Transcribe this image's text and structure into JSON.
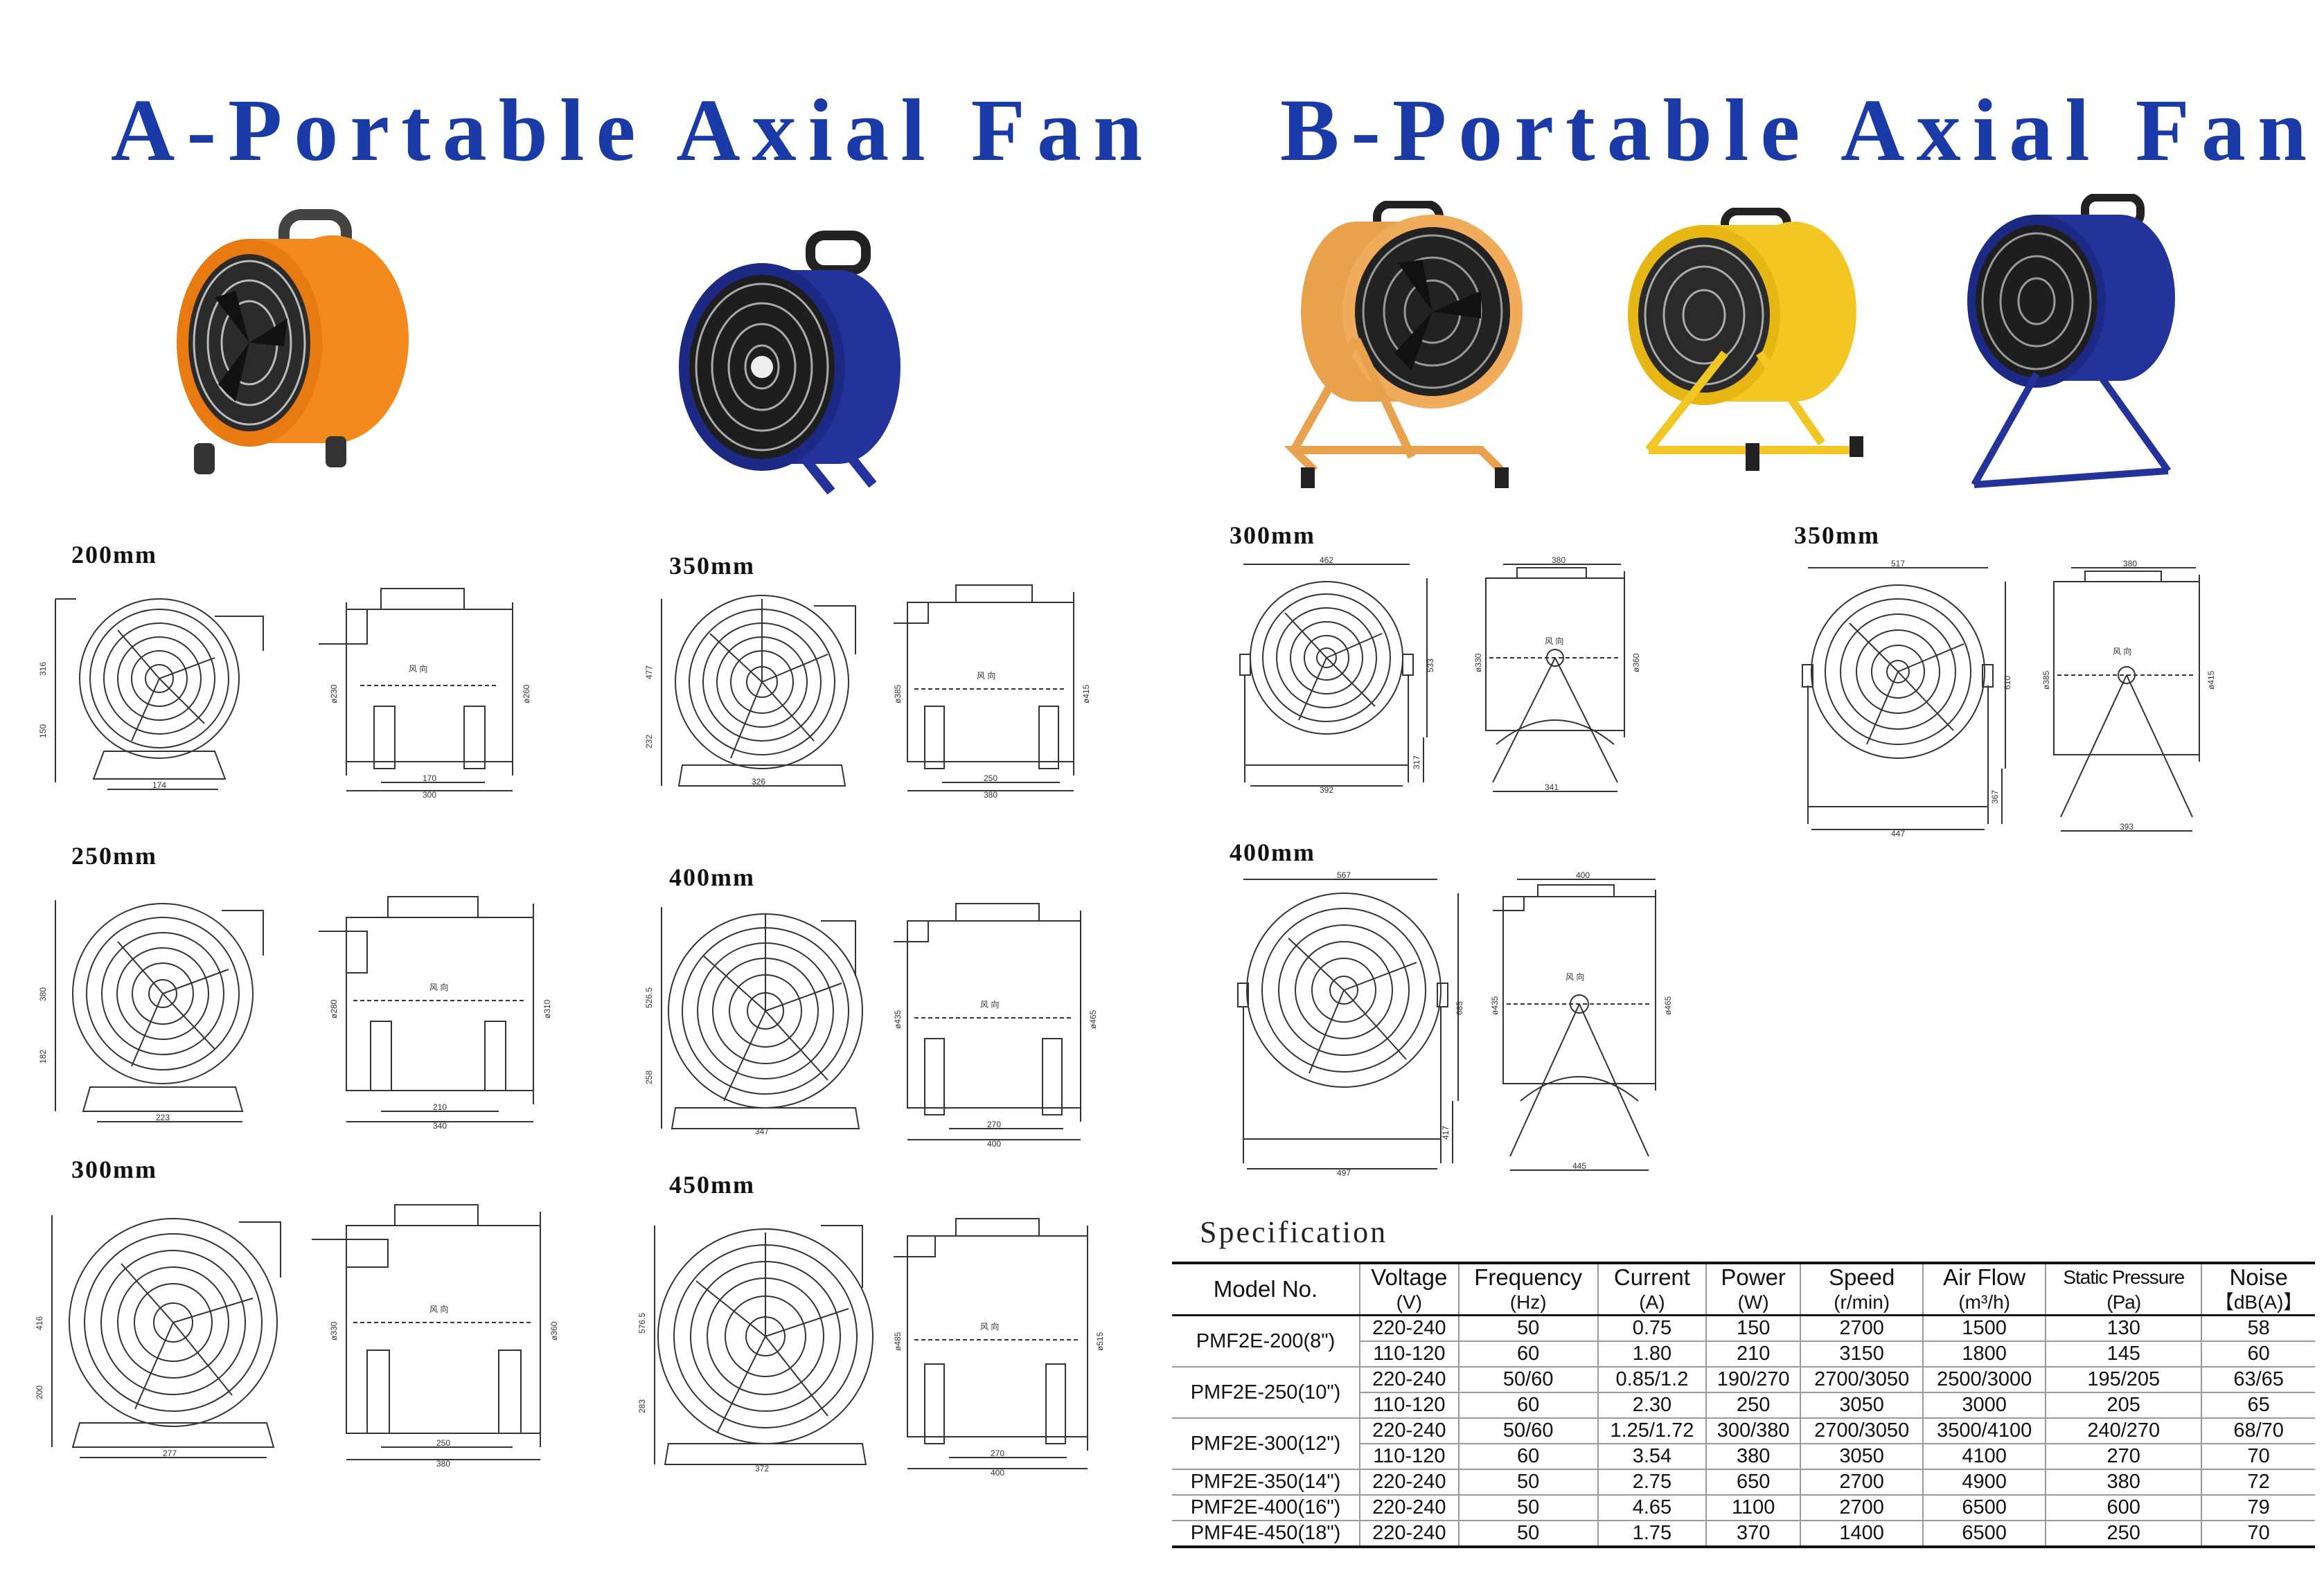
{
  "titles": {
    "a": "A-Portable Axial Fan",
    "b": "B-Portable Axial Fan"
  },
  "colors": {
    "title": "#1a3aa8",
    "orange_fan": "#f28a1e",
    "blue_fan": "#23339a",
    "yellow_fan": "#f2c623"
  },
  "photos": [
    {
      "name": "orange-fan-photo",
      "color": "orange"
    },
    {
      "name": "blue-fan-photo",
      "color": "blue"
    },
    {
      "name": "orange-stand-fan-photo",
      "color": "orange"
    },
    {
      "name": "yellow-stand-fan-photo",
      "color": "yellow"
    },
    {
      "name": "blue-stand-fan-photo",
      "color": "blue"
    }
  ],
  "section_a": {
    "sizes": [
      {
        "label": "200mm",
        "front": {
          "h1": "316",
          "h2": "150",
          "w": "174"
        },
        "side": {
          "d1": "ø230",
          "d2": "ø260",
          "w1": "170",
          "w2": "300"
        },
        "wind": "风 向"
      },
      {
        "label": "350mm",
        "front": {
          "h1": "477",
          "h2": "232",
          "w": "326"
        },
        "side": {
          "d1": "ø385",
          "d2": "ø415",
          "w1": "250",
          "w2": "380"
        },
        "wind": "风 向"
      },
      {
        "label": "250mm",
        "front": {
          "h1": "380",
          "h2": "182",
          "w": "223"
        },
        "side": {
          "d1": "ø280",
          "d2": "ø310",
          "w1": "210",
          "w2": "340"
        },
        "wind": "风 向"
      },
      {
        "label": "400mm",
        "front": {
          "h1": "526.5",
          "h2": "258",
          "w": "347"
        },
        "side": {
          "d1": "ø435",
          "d2": "ø465",
          "w1": "270",
          "w2": "400"
        },
        "wind": "风 向"
      },
      {
        "label": "300mm",
        "front": {
          "h1": "416",
          "h2": "200",
          "w": "277"
        },
        "side": {
          "d1": "ø330",
          "d2": "ø360",
          "w1": "250",
          "w2": "380"
        },
        "wind": "风 向"
      },
      {
        "label": "450mm",
        "front": {
          "h1": "576.5",
          "h2": "283",
          "w": "372"
        },
        "side": {
          "d1": "ø485",
          "d2": "ø515",
          "w1": "270",
          "w2": "400"
        },
        "wind": "风 向"
      }
    ]
  },
  "section_b": {
    "sizes": [
      {
        "label": "300mm",
        "front": {
          "top": "462",
          "h1": "533",
          "h2": "317",
          "w": "392"
        },
        "side": {
          "top": "380",
          "d1": "ø330",
          "d2": "ø360",
          "w": "341"
        },
        "wind": "风 向"
      },
      {
        "label": "350mm",
        "front": {
          "top": "517",
          "h1": "610",
          "h2": "367",
          "w": "447"
        },
        "side": {
          "top": "380",
          "d1": "ø385",
          "d2": "ø415",
          "w": "393"
        },
        "wind": "风 向"
      },
      {
        "label": "400mm",
        "front": {
          "top": "567",
          "h1": "685",
          "h2": "417",
          "w": "497"
        },
        "side": {
          "top": "400",
          "d1": "ø435",
          "d2": "ø465",
          "w": "445"
        },
        "wind": "风 向"
      }
    ]
  },
  "specification": {
    "title": "Specification",
    "headers": [
      {
        "label": "Model No.",
        "unit": ""
      },
      {
        "label": "Voltage",
        "unit": "(V)"
      },
      {
        "label": "Frequency",
        "unit": "(Hz)"
      },
      {
        "label": "Current",
        "unit": "(A)"
      },
      {
        "label": "Power",
        "unit": "(W)"
      },
      {
        "label": "Speed",
        "unit": "(r/min)"
      },
      {
        "label": "Air Flow",
        "unit": "(m³/h)"
      },
      {
        "label": "Static Pressure",
        "unit": "(Pa)"
      },
      {
        "label": "Noise",
        "unit": "【dB(A)】"
      }
    ],
    "models": [
      {
        "model": "PMF2E-200(8\")",
        "rows": [
          [
            "220-240",
            "50",
            "0.75",
            "150",
            "2700",
            "1500",
            "130",
            "58"
          ],
          [
            "110-120",
            "60",
            "1.80",
            "210",
            "3150",
            "1800",
            "145",
            "60"
          ]
        ]
      },
      {
        "model": "PMF2E-250(10\")",
        "rows": [
          [
            "220-240",
            "50/60",
            "0.85/1.2",
            "190/270",
            "2700/3050",
            "2500/3000",
            "195/205",
            "63/65"
          ],
          [
            "110-120",
            "60",
            "2.30",
            "250",
            "3050",
            "3000",
            "205",
            "65"
          ]
        ]
      },
      {
        "model": "PMF2E-300(12\")",
        "rows": [
          [
            "220-240",
            "50/60",
            "1.25/1.72",
            "300/380",
            "2700/3050",
            "3500/4100",
            "240/270",
            "68/70"
          ],
          [
            "110-120",
            "60",
            "3.54",
            "380",
            "3050",
            "4100",
            "270",
            "70"
          ]
        ]
      },
      {
        "model": "PMF2E-350(14\")",
        "rows": [
          [
            "220-240",
            "50",
            "2.75",
            "650",
            "2700",
            "4900",
            "380",
            "72"
          ]
        ]
      },
      {
        "model": "PMF2E-400(16\")",
        "rows": [
          [
            "220-240",
            "50",
            "4.65",
            "1100",
            "2700",
            "6500",
            "600",
            "79"
          ]
        ]
      },
      {
        "model": "PMF4E-450(18\")",
        "rows": [
          [
            "220-240",
            "50",
            "1.75",
            "370",
            "1400",
            "6500",
            "250",
            "70"
          ]
        ]
      }
    ]
  }
}
